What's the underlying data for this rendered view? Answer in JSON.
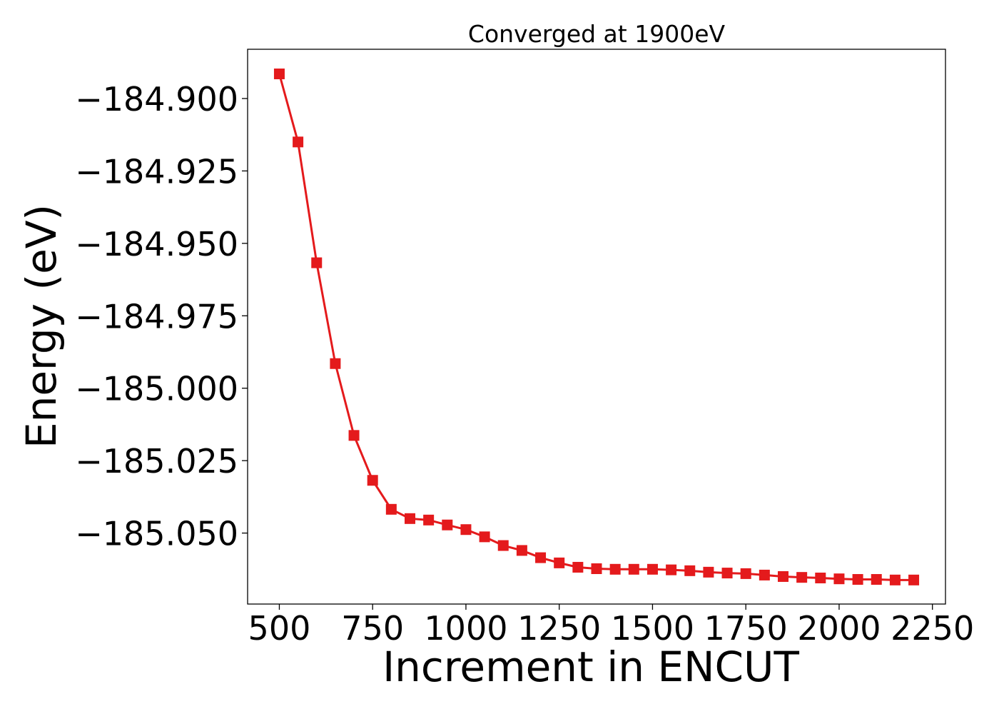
{
  "chart_data": {
    "type": "line",
    "title": "Converged at 1900eV",
    "xlabel": "Increment in ENCUT",
    "ylabel": "Energy (eV)",
    "xlim": [
      415,
      2285
    ],
    "ylim": [
      -185.0745,
      -184.883
    ],
    "xticks": [
      500,
      750,
      1000,
      1250,
      1500,
      1750,
      2000,
      2250
    ],
    "xtick_labels": [
      "500",
      "750",
      "1000",
      "1250",
      "1500",
      "1750",
      "2000",
      "2250"
    ],
    "yticks": [
      -184.9,
      -184.925,
      -184.95,
      -184.975,
      -185.0,
      -185.025,
      -185.05
    ],
    "ytick_labels": [
      "−184.900",
      "−184.925",
      "−184.950",
      "−184.975",
      "−185.000",
      "−185.025",
      "−185.050"
    ],
    "grid": false,
    "legend": "none",
    "series": [
      {
        "color": "#e41a1c",
        "marker": "square",
        "x": [
          500,
          550,
          600,
          650,
          700,
          750,
          800,
          850,
          900,
          950,
          1000,
          1050,
          1100,
          1150,
          1200,
          1250,
          1300,
          1350,
          1400,
          1450,
          1500,
          1550,
          1600,
          1650,
          1700,
          1750,
          1800,
          1850,
          1900,
          1950,
          2000,
          2050,
          2100,
          2150,
          2200
        ],
        "y": [
          -184.8915,
          -184.915,
          -184.9567,
          -184.9915,
          -185.0163,
          -185.0318,
          -185.0418,
          -185.045,
          -185.0455,
          -185.0472,
          -185.0488,
          -185.0513,
          -185.0543,
          -185.056,
          -185.0585,
          -185.0603,
          -185.0618,
          -185.0623,
          -185.0625,
          -185.0625,
          -185.0625,
          -185.0627,
          -185.063,
          -185.0635,
          -185.0638,
          -185.064,
          -185.0645,
          -185.065,
          -185.0653,
          -185.0655,
          -185.0658,
          -185.066,
          -185.066,
          -185.0662,
          -185.0662
        ]
      }
    ]
  }
}
